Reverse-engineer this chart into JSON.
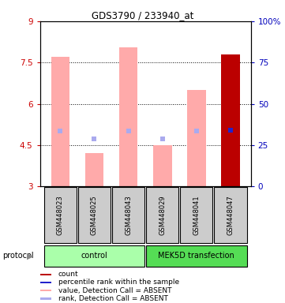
{
  "title": "GDS3790 / 233940_at",
  "samples": [
    "GSM448023",
    "GSM448025",
    "GSM448043",
    "GSM448029",
    "GSM448041",
    "GSM448047"
  ],
  "y_min": 3,
  "y_max": 9,
  "y_ticks": [
    3,
    4.5,
    6,
    7.5,
    9
  ],
  "y_tick_labels": [
    "3",
    "4.5",
    "6",
    "7.5",
    "9"
  ],
  "right_y_ticks_pct": [
    0,
    25,
    50,
    75,
    100
  ],
  "right_y_tick_labels": [
    "0",
    "25",
    "50",
    "75",
    "100%"
  ],
  "bar_base": 3,
  "bar_values": [
    7.7,
    4.2,
    8.05,
    4.5,
    6.5,
    7.8
  ],
  "bar_colors": [
    "#ffaaaa",
    "#ffaaaa",
    "#ffaaaa",
    "#ffaaaa",
    "#ffaaaa",
    "#bb0000"
  ],
  "rank_values": [
    5.0,
    4.72,
    5.0,
    4.72,
    5.0,
    5.05
  ],
  "rank_colors": [
    "#aaaaee",
    "#aaaaee",
    "#aaaaee",
    "#aaaaee",
    "#aaaaee",
    "#2222cc"
  ],
  "bar_width": 0.55,
  "ylabel_left_color": "#cc0000",
  "ylabel_right_color": "#0000bb",
  "sample_box_color": "#cccccc",
  "group_info": [
    {
      "label": "control",
      "start": 0,
      "end": 3,
      "color": "#aaffaa"
    },
    {
      "label": "MEK5D transfection",
      "start": 3,
      "end": 6,
      "color": "#55dd55"
    }
  ],
  "legend_items": [
    {
      "color": "#bb0000",
      "label": "count"
    },
    {
      "color": "#2222cc",
      "label": "percentile rank within the sample"
    },
    {
      "color": "#ffaaaa",
      "label": "value, Detection Call = ABSENT"
    },
    {
      "color": "#aaaaee",
      "label": "rank, Detection Call = ABSENT"
    }
  ]
}
